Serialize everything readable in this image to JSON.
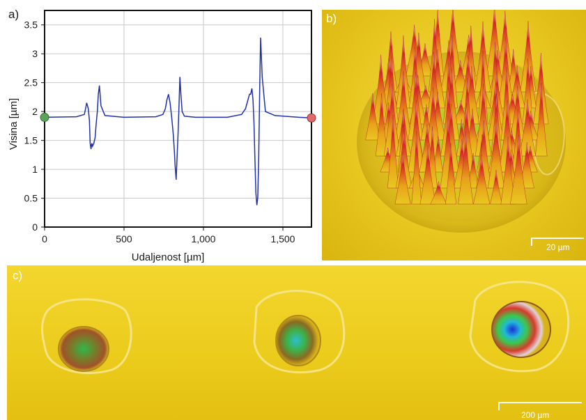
{
  "panels": {
    "a_label": "a)",
    "b_label": "b)",
    "c_label": "c)"
  },
  "scalebars": {
    "b": "20 µm",
    "c": "200 µm"
  },
  "colors": {
    "line": "#1f2fb0",
    "grid": "#c8c8c8",
    "start_marker": "#5aa35a",
    "end_marker": "#e06a6a",
    "surface": "#e8c820"
  },
  "chart_data": {
    "type": "line",
    "title": "",
    "xlabel": "Udaljenost [µm]",
    "ylabel": "Visina [µm]",
    "xlim": [
      0,
      1680
    ],
    "ylim": [
      0,
      3.75
    ],
    "x_ticks": [
      0,
      500,
      1000,
      1500
    ],
    "x_tick_labels": [
      "0",
      "500",
      "1,000",
      "1,500"
    ],
    "y_ticks": [
      0,
      0.5,
      1,
      1.5,
      2,
      2.5,
      3,
      3.5
    ],
    "y_tick_labels": [
      "0",
      "0.5",
      "1",
      "1.5",
      "2",
      "2.5",
      "3",
      "3.5"
    ],
    "grid": true,
    "series": [
      {
        "x": [
          0,
          200,
          250,
          258,
          265,
          275,
          282,
          287,
          292,
          297,
          302,
          310,
          318,
          325,
          332,
          338,
          345,
          355,
          380,
          500,
          700,
          745,
          760,
          770,
          780,
          790,
          800,
          810,
          817,
          822,
          828,
          834,
          840,
          846,
          852,
          858,
          866,
          880,
          950,
          1150,
          1240,
          1265,
          1280,
          1290,
          1297,
          1305,
          1312,
          1318,
          1324,
          1330,
          1336,
          1342,
          1348,
          1354,
          1360,
          1370,
          1390,
          1450,
          1600,
          1680
        ],
        "y": [
          1.9,
          1.91,
          1.95,
          2.05,
          2.15,
          2.05,
          1.85,
          1.45,
          1.35,
          1.45,
          1.4,
          1.45,
          1.55,
          1.8,
          2.0,
          2.3,
          2.45,
          2.1,
          1.93,
          1.9,
          1.91,
          1.95,
          2.05,
          2.2,
          2.3,
          2.15,
          1.9,
          1.6,
          1.3,
          1.05,
          0.82,
          1.2,
          1.6,
          2.1,
          2.6,
          2.3,
          2.0,
          1.92,
          1.9,
          1.9,
          1.95,
          2.05,
          2.2,
          2.3,
          2.3,
          2.4,
          2.2,
          1.8,
          1.2,
          0.6,
          0.38,
          0.5,
          1.2,
          2.4,
          3.28,
          2.6,
          2.0,
          1.93,
          1.9,
          1.89
        ]
      }
    ]
  }
}
